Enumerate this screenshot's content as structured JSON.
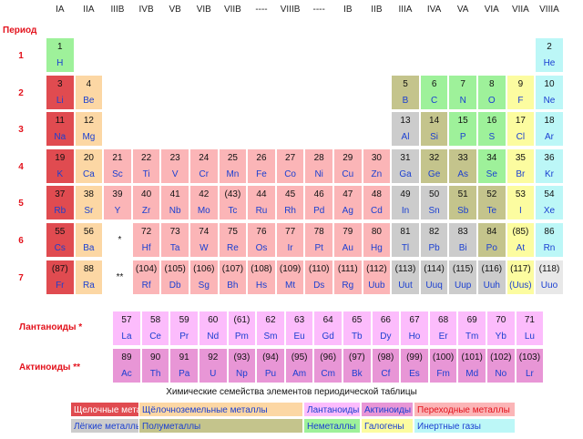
{
  "groups": [
    "IA",
    "IIA",
    "IIIB",
    "IVB",
    "VB",
    "VIB",
    "VIIB",
    "----",
    "VIIIB",
    "----",
    "IB",
    "IIB",
    "IIIA",
    "IVA",
    "VA",
    "VIA",
    "VIIA",
    "VIIIA"
  ],
  "period_title": "Период",
  "periods": [
    "1",
    "2",
    "3",
    "4",
    "5",
    "6",
    "7"
  ],
  "lanthanoids_label": "Лантаноиды *",
  "actinoids_label": "Актиноиды **",
  "star_single": "*",
  "star_double": "**",
  "elements": [
    {
      "n": "1",
      "s": "H",
      "c": "non",
      "col": 0,
      "row": 0
    },
    {
      "n": "2",
      "s": "He",
      "c": "nob",
      "col": 17,
      "row": 0
    },
    {
      "n": "3",
      "s": "Li",
      "c": "alk",
      "col": 0,
      "row": 1
    },
    {
      "n": "4",
      "s": "Be",
      "c": "ae",
      "col": 1,
      "row": 1
    },
    {
      "n": "5",
      "s": "B",
      "c": "met",
      "col": 12,
      "row": 1
    },
    {
      "n": "6",
      "s": "C",
      "c": "non",
      "col": 13,
      "row": 1
    },
    {
      "n": "7",
      "s": "N",
      "c": "non",
      "col": 14,
      "row": 1
    },
    {
      "n": "8",
      "s": "O",
      "c": "non",
      "col": 15,
      "row": 1
    },
    {
      "n": "9",
      "s": "F",
      "c": "hal",
      "col": 16,
      "row": 1
    },
    {
      "n": "10",
      "s": "Ne",
      "c": "nob",
      "col": 17,
      "row": 1
    },
    {
      "n": "11",
      "s": "Na",
      "c": "alk",
      "col": 0,
      "row": 2
    },
    {
      "n": "12",
      "s": "Mg",
      "c": "ae",
      "col": 1,
      "row": 2
    },
    {
      "n": "13",
      "s": "Al",
      "c": "pm",
      "col": 12,
      "row": 2
    },
    {
      "n": "14",
      "s": "Si",
      "c": "met",
      "col": 13,
      "row": 2
    },
    {
      "n": "15",
      "s": "P",
      "c": "non",
      "col": 14,
      "row": 2
    },
    {
      "n": "16",
      "s": "S",
      "c": "non",
      "col": 15,
      "row": 2
    },
    {
      "n": "17",
      "s": "Cl",
      "c": "hal",
      "col": 16,
      "row": 2
    },
    {
      "n": "18",
      "s": "Ar",
      "c": "nob",
      "col": 17,
      "row": 2
    },
    {
      "n": "19",
      "s": "K",
      "c": "alk",
      "col": 0,
      "row": 3
    },
    {
      "n": "20",
      "s": "Ca",
      "c": "ae",
      "col": 1,
      "row": 3
    },
    {
      "n": "21",
      "s": "Sc",
      "c": "tm",
      "col": 2,
      "row": 3
    },
    {
      "n": "22",
      "s": "Ti",
      "c": "tm",
      "col": 3,
      "row": 3
    },
    {
      "n": "23",
      "s": "V",
      "c": "tm",
      "col": 4,
      "row": 3
    },
    {
      "n": "24",
      "s": "Cr",
      "c": "tm",
      "col": 5,
      "row": 3
    },
    {
      "n": "25",
      "s": "Mn",
      "c": "tm",
      "col": 6,
      "row": 3
    },
    {
      "n": "26",
      "s": "Fe",
      "c": "tm",
      "col": 7,
      "row": 3
    },
    {
      "n": "27",
      "s": "Co",
      "c": "tm",
      "col": 8,
      "row": 3
    },
    {
      "n": "28",
      "s": "Ni",
      "c": "tm",
      "col": 9,
      "row": 3
    },
    {
      "n": "29",
      "s": "Cu",
      "c": "tm",
      "col": 10,
      "row": 3
    },
    {
      "n": "30",
      "s": "Zn",
      "c": "tm",
      "col": 11,
      "row": 3
    },
    {
      "n": "31",
      "s": "Ga",
      "c": "pm",
      "col": 12,
      "row": 3
    },
    {
      "n": "32",
      "s": "Ge",
      "c": "met",
      "col": 13,
      "row": 3
    },
    {
      "n": "33",
      "s": "As",
      "c": "met",
      "col": 14,
      "row": 3
    },
    {
      "n": "34",
      "s": "Se",
      "c": "non",
      "col": 15,
      "row": 3
    },
    {
      "n": "35",
      "s": "Br",
      "c": "hal",
      "col": 16,
      "row": 3
    },
    {
      "n": "36",
      "s": "Kr",
      "c": "nob",
      "col": 17,
      "row": 3
    },
    {
      "n": "37",
      "s": "Rb",
      "c": "alk",
      "col": 0,
      "row": 4
    },
    {
      "n": "38",
      "s": "Sr",
      "c": "ae",
      "col": 1,
      "row": 4
    },
    {
      "n": "39",
      "s": "Y",
      "c": "tm",
      "col": 2,
      "row": 4
    },
    {
      "n": "40",
      "s": "Zr",
      "c": "tm",
      "col": 3,
      "row": 4
    },
    {
      "n": "41",
      "s": "Nb",
      "c": "tm",
      "col": 4,
      "row": 4
    },
    {
      "n": "42",
      "s": "Mo",
      "c": "tm",
      "col": 5,
      "row": 4
    },
    {
      "n": "(43)",
      "s": "Tc",
      "c": "tm",
      "col": 6,
      "row": 4
    },
    {
      "n": "44",
      "s": "Ru",
      "c": "tm",
      "col": 7,
      "row": 4
    },
    {
      "n": "45",
      "s": "Rh",
      "c": "tm",
      "col": 8,
      "row": 4
    },
    {
      "n": "46",
      "s": "Pd",
      "c": "tm",
      "col": 9,
      "row": 4
    },
    {
      "n": "47",
      "s": "Ag",
      "c": "tm",
      "col": 10,
      "row": 4
    },
    {
      "n": "48",
      "s": "Cd",
      "c": "tm",
      "col": 11,
      "row": 4
    },
    {
      "n": "49",
      "s": "In",
      "c": "pm",
      "col": 12,
      "row": 4
    },
    {
      "n": "50",
      "s": "Sn",
      "c": "pm",
      "col": 13,
      "row": 4
    },
    {
      "n": "51",
      "s": "Sb",
      "c": "met",
      "col": 14,
      "row": 4
    },
    {
      "n": "52",
      "s": "Te",
      "c": "met",
      "col": 15,
      "row": 4
    },
    {
      "n": "53",
      "s": "I",
      "c": "hal",
      "col": 16,
      "row": 4
    },
    {
      "n": "54",
      "s": "Xe",
      "c": "nob",
      "col": 17,
      "row": 4
    },
    {
      "n": "55",
      "s": "Cs",
      "c": "alk",
      "col": 0,
      "row": 5
    },
    {
      "n": "56",
      "s": "Ba",
      "c": "ae",
      "col": 1,
      "row": 5
    },
    {
      "n": "72",
      "s": "Hf",
      "c": "tm",
      "col": 3,
      "row": 5
    },
    {
      "n": "73",
      "s": "Ta",
      "c": "tm",
      "col": 4,
      "row": 5
    },
    {
      "n": "74",
      "s": "W",
      "c": "tm",
      "col": 5,
      "row": 5
    },
    {
      "n": "75",
      "s": "Re",
      "c": "tm",
      "col": 6,
      "row": 5
    },
    {
      "n": "76",
      "s": "Os",
      "c": "tm",
      "col": 7,
      "row": 5
    },
    {
      "n": "77",
      "s": "Ir",
      "c": "tm",
      "col": 8,
      "row": 5
    },
    {
      "n": "78",
      "s": "Pt",
      "c": "tm",
      "col": 9,
      "row": 5
    },
    {
      "n": "79",
      "s": "Au",
      "c": "tm",
      "col": 10,
      "row": 5
    },
    {
      "n": "80",
      "s": "Hg",
      "c": "tm",
      "col": 11,
      "row": 5
    },
    {
      "n": "81",
      "s": "Tl",
      "c": "pm",
      "col": 12,
      "row": 5
    },
    {
      "n": "82",
      "s": "Pb",
      "c": "pm",
      "col": 13,
      "row": 5
    },
    {
      "n": "83",
      "s": "Bi",
      "c": "pm",
      "col": 14,
      "row": 5
    },
    {
      "n": "84",
      "s": "Po",
      "c": "met",
      "col": 15,
      "row": 5
    },
    {
      "n": "(85)",
      "s": "At",
      "c": "hal",
      "col": 16,
      "row": 5
    },
    {
      "n": "86",
      "s": "Rn",
      "c": "nob",
      "col": 17,
      "row": 5
    },
    {
      "n": "(87)",
      "s": "Fr",
      "c": "alk",
      "col": 0,
      "row": 6
    },
    {
      "n": "88",
      "s": "Ra",
      "c": "ae",
      "col": 1,
      "row": 6
    },
    {
      "n": "(104)",
      "s": "Rf",
      "c": "tm",
      "col": 3,
      "row": 6
    },
    {
      "n": "(105)",
      "s": "Db",
      "c": "tm",
      "col": 4,
      "row": 6
    },
    {
      "n": "(106)",
      "s": "Sg",
      "c": "tm",
      "col": 5,
      "row": 6
    },
    {
      "n": "(107)",
      "s": "Bh",
      "c": "tm",
      "col": 6,
      "row": 6
    },
    {
      "n": "(108)",
      "s": "Hs",
      "c": "tm",
      "col": 7,
      "row": 6
    },
    {
      "n": "(109)",
      "s": "Mt",
      "c": "tm",
      "col": 8,
      "row": 6
    },
    {
      "n": "(110)",
      "s": "Ds",
      "c": "tm",
      "col": 9,
      "row": 6
    },
    {
      "n": "(111)",
      "s": "Rg",
      "c": "tm",
      "col": 10,
      "row": 6
    },
    {
      "n": "(112)",
      "s": "Uub",
      "c": "tm",
      "col": 11,
      "row": 6
    },
    {
      "n": "(113)",
      "s": "Uut",
      "c": "pm",
      "col": 12,
      "row": 6
    },
    {
      "n": "(114)",
      "s": "Uuq",
      "c": "pm",
      "col": 13,
      "row": 6
    },
    {
      "n": "(115)",
      "s": "Uup",
      "c": "pm",
      "col": 14,
      "row": 6
    },
    {
      "n": "(116)",
      "s": "Uuh",
      "c": "pm",
      "col": 15,
      "row": 6
    },
    {
      "n": "(117)",
      "s": "(Uus)",
      "c": "hal",
      "col": 16,
      "row": 6
    },
    {
      "n": "(118)",
      "s": "Uuo",
      "c": "unk",
      "col": 17,
      "row": 6
    }
  ],
  "lanthanides": [
    {
      "n": "57",
      "s": "La"
    },
    {
      "n": "58",
      "s": "Ce"
    },
    {
      "n": "59",
      "s": "Pr"
    },
    {
      "n": "60",
      "s": "Nd"
    },
    {
      "n": "(61)",
      "s": "Pm"
    },
    {
      "n": "62",
      "s": "Sm"
    },
    {
      "n": "63",
      "s": "Eu"
    },
    {
      "n": "64",
      "s": "Gd"
    },
    {
      "n": "65",
      "s": "Tb"
    },
    {
      "n": "66",
      "s": "Dy"
    },
    {
      "n": "67",
      "s": "Ho"
    },
    {
      "n": "68",
      "s": "Er"
    },
    {
      "n": "69",
      "s": "Tm"
    },
    {
      "n": "70",
      "s": "Yb"
    },
    {
      "n": "71",
      "s": "Lu"
    }
  ],
  "actinides": [
    {
      "n": "89",
      "s": "Ac"
    },
    {
      "n": "90",
      "s": "Th"
    },
    {
      "n": "91",
      "s": "Pa"
    },
    {
      "n": "92",
      "s": "U"
    },
    {
      "n": "(93)",
      "s": "Np"
    },
    {
      "n": "(94)",
      "s": "Pu"
    },
    {
      "n": "(95)",
      "s": "Am"
    },
    {
      "n": "(96)",
      "s": "Cm"
    },
    {
      "n": "(97)",
      "s": "Bk"
    },
    {
      "n": "(98)",
      "s": "Cf"
    },
    {
      "n": "(99)",
      "s": "Es"
    },
    {
      "n": "(100)",
      "s": "Fm"
    },
    {
      "n": "(101)",
      "s": "Md"
    },
    {
      "n": "(102)",
      "s": "No"
    },
    {
      "n": "(103)",
      "s": "Lr"
    }
  ],
  "legend_title": "Химические семейства элементов периодической таблицы",
  "legend": [
    {
      "label": "Щелочные металлы",
      "c": "alk"
    },
    {
      "label": "Щёлочноземельные металлы",
      "c": "ae"
    },
    {
      "label": "Лантаноиды",
      "c": "lan"
    },
    {
      "label": "Актиноиды",
      "c": "act"
    },
    {
      "label": "Переходные металлы",
      "c": "tm"
    },
    {
      "label": "Лёгкие металлы",
      "c": "pm"
    },
    {
      "label": "Полуметаллы",
      "c": "met"
    },
    {
      "label": "Неметаллы",
      "c": "non"
    },
    {
      "label": "Галогены",
      "c": "hal"
    },
    {
      "label": "Инертные газы",
      "c": "nob"
    }
  ],
  "colors": {
    "alk": "#e04b50",
    "ae": "#fcd7a4",
    "tm": "#fbb5b7",
    "lan": "#fcbcfc",
    "act": "#e896d6",
    "pm": "#cccccc",
    "met": "#c4c48c",
    "non": "#9ef19a",
    "hal": "#fcfca0",
    "nob": "#bcf7f7"
  }
}
